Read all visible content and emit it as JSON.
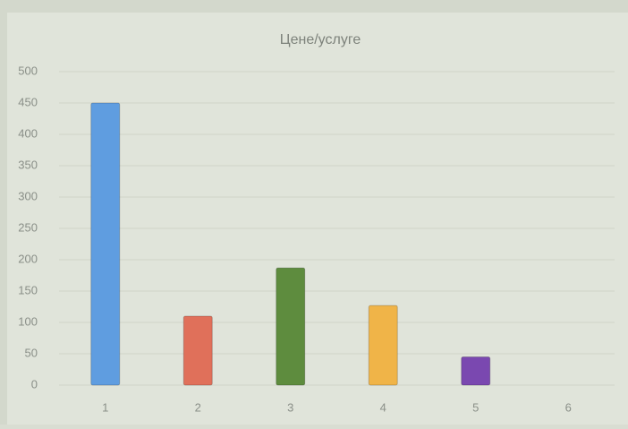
{
  "chart_data": {
    "type": "bar",
    "title": "Цене/услуге",
    "categories": [
      "1",
      "2",
      "3",
      "4",
      "5",
      "6"
    ],
    "values": [
      450,
      110,
      187,
      127,
      45,
      0
    ],
    "colors": [
      "#5f9de0",
      "#e0705a",
      "#5e8c3e",
      "#f0b448",
      "#7a48b0",
      "#999999"
    ],
    "ylim": [
      0,
      500
    ],
    "yticks": [
      0,
      50,
      100,
      150,
      200,
      250,
      300,
      350,
      400,
      450,
      500
    ],
    "grid": true
  }
}
